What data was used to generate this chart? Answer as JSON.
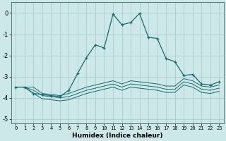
{
  "xlabel": "Humidex (Indice chaleur)",
  "bg_color": "#cce8e8",
  "grid_color": "#aacccc",
  "line_color": "#1a6b6b",
  "xlim": [
    -0.5,
    23.5
  ],
  "ylim": [
    -5.2,
    0.5
  ],
  "yticks": [
    0,
    -1,
    -2,
    -3,
    -4,
    -5
  ],
  "xticks": [
    0,
    1,
    2,
    3,
    4,
    5,
    6,
    7,
    8,
    9,
    10,
    11,
    12,
    13,
    14,
    15,
    16,
    17,
    18,
    19,
    20,
    21,
    22,
    23
  ],
  "series": [
    {
      "x": [
        0,
        1,
        2,
        3,
        4,
        5,
        6,
        7,
        8,
        9,
        10,
        11,
        12,
        13,
        14,
        15,
        16,
        17,
        18,
        19,
        20,
        21,
        22,
        23
      ],
      "y": [
        -3.5,
        -3.5,
        -3.5,
        -3.8,
        -3.85,
        -3.9,
        -3.8,
        -3.65,
        -3.5,
        -3.4,
        -3.3,
        -3.2,
        -3.35,
        -3.2,
        -3.25,
        -3.3,
        -3.35,
        -3.45,
        -3.45,
        -3.1,
        -3.2,
        -3.45,
        -3.5,
        -3.4
      ],
      "marker": false
    },
    {
      "x": [
        0,
        1,
        2,
        3,
        4,
        5,
        6,
        7,
        8,
        9,
        10,
        11,
        12,
        13,
        14,
        15,
        16,
        17,
        18,
        19,
        20,
        21,
        22,
        23
      ],
      "y": [
        -3.5,
        -3.5,
        -3.65,
        -3.9,
        -3.95,
        -4.0,
        -3.95,
        -3.8,
        -3.65,
        -3.55,
        -3.45,
        -3.35,
        -3.5,
        -3.35,
        -3.4,
        -3.45,
        -3.5,
        -3.6,
        -3.6,
        -3.25,
        -3.35,
        -3.6,
        -3.65,
        -3.55
      ],
      "marker": false
    },
    {
      "x": [
        0,
        1,
        2,
        3,
        4,
        5,
        6,
        7,
        8,
        9,
        10,
        11,
        12,
        13,
        14,
        15,
        16,
        17,
        18,
        19,
        20,
        21,
        22,
        23
      ],
      "y": [
        -3.5,
        -3.5,
        -3.8,
        -4.05,
        -4.1,
        -4.15,
        -4.1,
        -3.95,
        -3.8,
        -3.7,
        -3.6,
        -3.5,
        -3.65,
        -3.5,
        -3.55,
        -3.6,
        -3.65,
        -3.75,
        -3.75,
        -3.4,
        -3.5,
        -3.75,
        -3.8,
        -3.7
      ],
      "marker": false
    },
    {
      "x": [
        0,
        1,
        2,
        3,
        4,
        5,
        6,
        7,
        8,
        9,
        10,
        11,
        12,
        13,
        14,
        15,
        16,
        17,
        18,
        19,
        20,
        21,
        22,
        23
      ],
      "y": [
        -3.5,
        -3.5,
        -3.8,
        -3.85,
        -3.9,
        -3.95,
        -3.65,
        -2.85,
        -2.1,
        -1.5,
        -1.65,
        -0.05,
        -0.55,
        -0.45,
        -0.02,
        -1.15,
        -1.2,
        -2.15,
        -2.3,
        -2.95,
        -2.9,
        -3.35,
        -3.4,
        -3.25
      ],
      "marker": true
    }
  ]
}
